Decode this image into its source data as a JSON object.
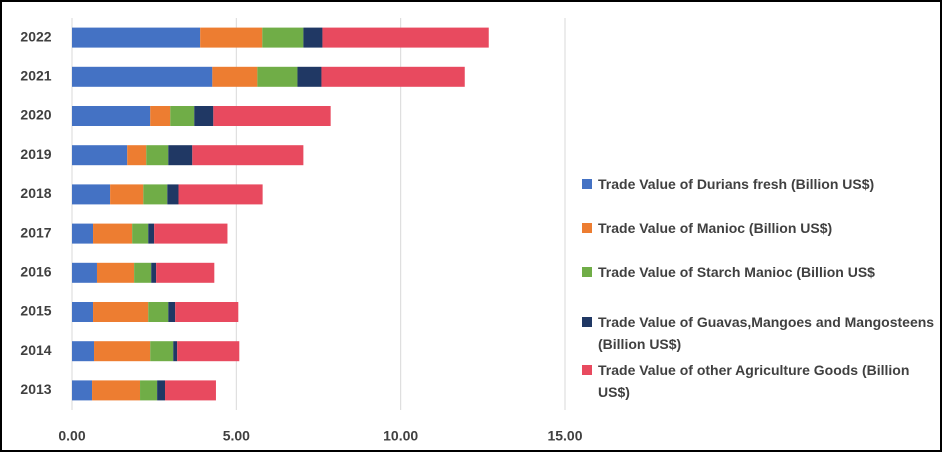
{
  "chart_data": {
    "type": "stacked-barh",
    "categories": [
      "2013",
      "2014",
      "2015",
      "2016",
      "2017",
      "2018",
      "2019",
      "2020",
      "2021",
      "2022"
    ],
    "series": [
      {
        "name": "Trade Value of Durians fresh (Billion US$)",
        "color": "#4472c4",
        "values": [
          0.61,
          0.67,
          0.64,
          0.76,
          0.64,
          1.16,
          1.68,
          2.38,
          4.27,
          3.9
        ]
      },
      {
        "name": "Trade Value of Manioc (Billion US$)",
        "color": "#ed7d31",
        "values": [
          1.46,
          1.71,
          1.68,
          1.13,
          1.19,
          1.01,
          0.58,
          0.61,
          1.37,
          1.89
        ]
      },
      {
        "name": "Trade Value of Starch Manioc (Billion US$",
        "color": "#70ad47",
        "values": [
          0.52,
          0.7,
          0.61,
          0.52,
          0.49,
          0.73,
          0.67,
          0.73,
          1.22,
          1.25
        ]
      },
      {
        "name": "Trade Value of Guavas,Mangoes and Mangosteens (Billion US$)",
        "color": "#203864",
        "values": [
          0.24,
          0.12,
          0.21,
          0.15,
          0.18,
          0.34,
          0.73,
          0.58,
          0.73,
          0.58
        ]
      },
      {
        "name": "Trade Value of other Agriculture Goods (Billion US$)",
        "color": "#e84a5f",
        "values": [
          1.55,
          1.89,
          1.92,
          1.77,
          2.23,
          2.56,
          3.38,
          3.57,
          4.36,
          5.06
        ]
      }
    ],
    "xlim": [
      0,
      15
    ],
    "xticks": [
      {
        "value": 0,
        "label": "0.00"
      },
      {
        "value": 5,
        "label": "5.00"
      },
      {
        "value": 10,
        "label": "10.00"
      },
      {
        "value": 15,
        "label": "15.00"
      }
    ],
    "grid": true,
    "legend": "right"
  }
}
